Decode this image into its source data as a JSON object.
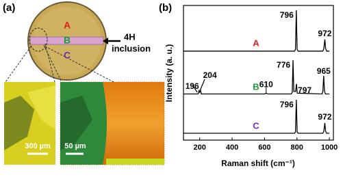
{
  "panel_a": {
    "label": "(a)",
    "regions": [
      {
        "name": "A",
        "color": "#e02020"
      },
      {
        "name": "B",
        "color": "#1a9a3a"
      },
      {
        "name": "C",
        "color": "#7030a0"
      }
    ],
    "arrow_label": [
      "4H",
      "inclusion"
    ],
    "scale_bars": [
      "300 µm",
      "50 µm"
    ]
  },
  "chart_data": {
    "type": "line",
    "panel_label": "(b)",
    "x_label": "Raman shift (cm⁻¹)",
    "y_label": "Intensity (a. u.)",
    "xlim": [
      100,
      1025
    ],
    "xticks": [
      200,
      400,
      600,
      800,
      1000
    ],
    "ylim": [
      0,
      1
    ],
    "series": [
      {
        "name": "A",
        "color": "#e02020",
        "x": [
          100,
          785,
          791,
          796,
          801,
          807,
          960,
          966,
          972,
          977,
          983,
          1000
        ],
        "values": [
          0.02,
          0.02,
          0.06,
          1.0,
          0.06,
          0.02,
          0.02,
          0.08,
          0.3,
          0.08,
          0.02,
          0.02
        ],
        "peaks": [
          796,
          972
        ]
      },
      {
        "name": "B",
        "color": "#1a9a3a",
        "x": [
          100,
          190,
          196,
          200,
          204,
          210,
          600,
          610,
          620,
          765,
          771,
          776,
          781,
          792,
          797,
          802,
          955,
          960,
          965,
          970,
          976,
          1000
        ],
        "values": [
          0.03,
          0.03,
          0.12,
          0.08,
          0.16,
          0.03,
          0.03,
          0.05,
          0.03,
          0.03,
          0.08,
          1.0,
          0.1,
          0.1,
          0.32,
          0.05,
          0.03,
          0.1,
          0.55,
          0.1,
          0.03,
          0.03
        ],
        "peaks": [
          196,
          204,
          610,
          776,
          797,
          965
        ]
      },
      {
        "name": "C",
        "color": "#7030a0",
        "x": [
          100,
          785,
          791,
          796,
          801,
          807,
          960,
          966,
          972,
          977,
          983,
          1000
        ],
        "values": [
          0.02,
          0.02,
          0.06,
          1.0,
          0.06,
          0.02,
          0.02,
          0.08,
          0.32,
          0.08,
          0.02,
          0.02
        ],
        "peaks": [
          796,
          972
        ]
      }
    ]
  }
}
